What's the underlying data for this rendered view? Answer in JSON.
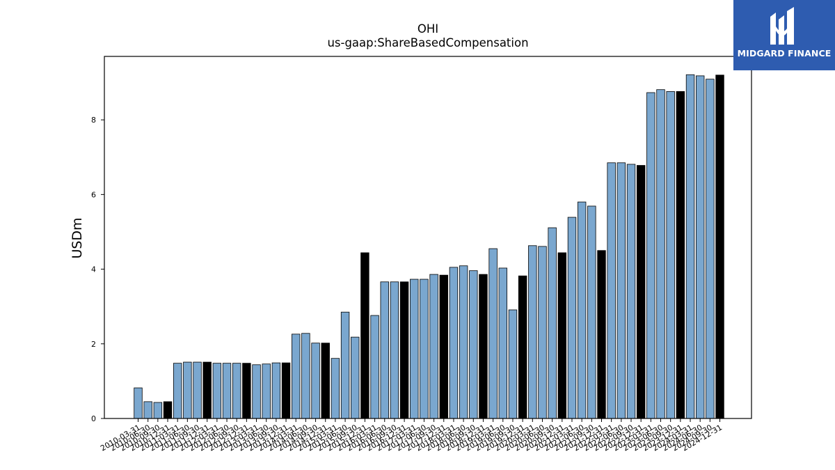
{
  "chart_data": {
    "type": "bar",
    "title": "OHI",
    "subtitle": "us-gaap:ShareBasedCompensation",
    "xlabel": "",
    "ylabel": "USDm",
    "ylim": [
      0,
      9.7
    ],
    "yticks": [
      0,
      2,
      4,
      6,
      8
    ],
    "grid": false,
    "categories": [
      "2010-03-31",
      "2010-06-30",
      "2010-09-30",
      "2010-12-31",
      "2011-03-31",
      "2011-06-30",
      "2011-09-30",
      "2011-12-31",
      "2012-03-31",
      "2012-06-30",
      "2012-09-30",
      "2012-12-31",
      "2013-03-31",
      "2013-06-30",
      "2013-09-30",
      "2013-12-31",
      "2014-03-31",
      "2014-06-30",
      "2014-09-30",
      "2014-12-31",
      "2015-03-31",
      "2015-06-30",
      "2015-09-30",
      "2015-12-31",
      "2016-03-31",
      "2016-06-30",
      "2016-09-30",
      "2016-12-31",
      "2017-03-31",
      "2017-06-30",
      "2017-09-30",
      "2017-12-31",
      "2018-03-31",
      "2018-06-30",
      "2018-09-30",
      "2018-12-31",
      "2019-03-31",
      "2019-06-30",
      "2019-09-30",
      "2019-12-31",
      "2020-03-31",
      "2020-06-30",
      "2020-09-30",
      "2020-12-31",
      "2021-03-31",
      "2021-06-30",
      "2021-09-30",
      "2021-12-31",
      "2022-03-31",
      "2022-06-30",
      "2022-09-30",
      "2022-12-31",
      "2023-03-31",
      "2023-06-30",
      "2023-09-30",
      "2023-12-31",
      "2024-03-31",
      "2024-06-30",
      "2024-09-30",
      "2024-12-31"
    ],
    "values": [
      0.82,
      0.45,
      0.43,
      0.45,
      1.48,
      1.51,
      1.51,
      1.51,
      1.48,
      1.48,
      1.48,
      1.48,
      1.44,
      1.46,
      1.49,
      1.49,
      2.26,
      2.28,
      2.02,
      2.02,
      1.61,
      2.85,
      2.18,
      4.44,
      2.76,
      3.66,
      3.66,
      3.66,
      3.73,
      3.73,
      3.86,
      3.84,
      4.05,
      4.09,
      3.96,
      3.86,
      4.55,
      4.03,
      2.91,
      3.82,
      4.63,
      4.61,
      5.11,
      4.44,
      5.39,
      5.8,
      5.69,
      4.5,
      6.85,
      6.85,
      6.81,
      6.78,
      8.73,
      8.81,
      8.76,
      8.76,
      9.21,
      9.18,
      9.09,
      9.2
    ],
    "annual": [
      false,
      false,
      false,
      true,
      false,
      false,
      false,
      true,
      false,
      false,
      false,
      true,
      false,
      false,
      false,
      true,
      false,
      false,
      false,
      true,
      false,
      false,
      false,
      true,
      false,
      false,
      false,
      true,
      false,
      false,
      false,
      true,
      false,
      false,
      false,
      true,
      false,
      false,
      false,
      true,
      false,
      false,
      false,
      true,
      false,
      false,
      false,
      true,
      false,
      false,
      false,
      true,
      false,
      false,
      false,
      true,
      false,
      false,
      false,
      true
    ],
    "colors": {
      "quarter": "#7aa7cf",
      "annual": "#000000",
      "edge": "#000000"
    }
  },
  "logo": {
    "text": "MIDGARD FINANCE",
    "bg": "#2e5cb0"
  }
}
